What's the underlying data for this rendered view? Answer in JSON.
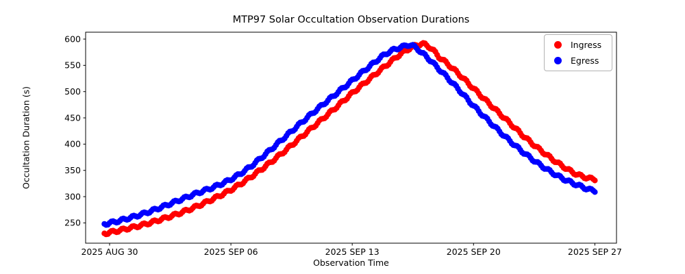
{
  "chart_data": {
    "type": "scatter",
    "title": "MTP97 Solar Occultation Observation Durations",
    "xlabel": "Observation Time",
    "ylabel": "Occultation Duration (s)",
    "grid": false,
    "x_axis": {
      "epoch": "2025 AUG 30",
      "xlim_days": [
        -1.383,
        29.249
      ],
      "ticks": [
        {
          "label": "2025 AUG 30",
          "d": 0
        },
        {
          "label": "2025 SEP 06",
          "d": 7
        },
        {
          "label": "2025 SEP 13",
          "d": 14
        },
        {
          "label": "2025 SEP 20",
          "d": 21
        },
        {
          "label": "2025 SEP 27",
          "d": 28
        }
      ]
    },
    "y_axis": {
      "ylim": [
        211.4,
        613.1
      ],
      "ticks": [
        250,
        300,
        350,
        400,
        450,
        500,
        550,
        600
      ]
    },
    "legend": {
      "position": "upper right",
      "entries": [
        {
          "label": "Ingress",
          "color": "#ff0000"
        },
        {
          "label": "Egress",
          "color": "#0000ff"
        }
      ]
    },
    "marker": {
      "shape": "circle",
      "radius_px": 4.2,
      "sample_step_days": 0.1
    },
    "oscillation": {
      "amplitude_s": 2.5,
      "period_days": 0.6
    },
    "series": [
      {
        "name": "Ingress",
        "color": "#ff0000",
        "units": "seconds",
        "x_unit": "days since 2025 AUG 30",
        "points": [
          [
            -0.3,
            230
          ],
          [
            0,
            232
          ],
          [
            1,
            239
          ],
          [
            2,
            247
          ],
          [
            3,
            257
          ],
          [
            4,
            268
          ],
          [
            5,
            281
          ],
          [
            6,
            296
          ],
          [
            7,
            313
          ],
          [
            8,
            334
          ],
          [
            9,
            358
          ],
          [
            10,
            384
          ],
          [
            11,
            412
          ],
          [
            12,
            440
          ],
          [
            13,
            468
          ],
          [
            14,
            497
          ],
          [
            15,
            524
          ],
          [
            16,
            551
          ],
          [
            17,
            576
          ],
          [
            17.9,
            590
          ],
          [
            18.4,
            586
          ],
          [
            19,
            566
          ],
          [
            20,
            538
          ],
          [
            21,
            506
          ],
          [
            22,
            474
          ],
          [
            23,
            443
          ],
          [
            24,
            412
          ],
          [
            25,
            385
          ],
          [
            26,
            361
          ],
          [
            27,
            342
          ],
          [
            28,
            333
          ]
        ]
      },
      {
        "name": "Egress",
        "color": "#0000ff",
        "units": "seconds",
        "x_unit": "days since 2025 AUG 30",
        "points": [
          [
            -0.3,
            248
          ],
          [
            0,
            250
          ],
          [
            1,
            258
          ],
          [
            2,
            268
          ],
          [
            3,
            280
          ],
          [
            4,
            293
          ],
          [
            5,
            306
          ],
          [
            6,
            318
          ],
          [
            7,
            333
          ],
          [
            8,
            354
          ],
          [
            9,
            381
          ],
          [
            10,
            410
          ],
          [
            11,
            439
          ],
          [
            12,
            467
          ],
          [
            13,
            494
          ],
          [
            14,
            521
          ],
          [
            15,
            548
          ],
          [
            16,
            573
          ],
          [
            17,
            586
          ],
          [
            17.4,
            588
          ],
          [
            18,
            574
          ],
          [
            19,
            543
          ],
          [
            20,
            509
          ],
          [
            21,
            473
          ],
          [
            22,
            440
          ],
          [
            23,
            409
          ],
          [
            24,
            381
          ],
          [
            25,
            357
          ],
          [
            26,
            337
          ],
          [
            27,
            322
          ],
          [
            28,
            311
          ]
        ]
      }
    ]
  }
}
